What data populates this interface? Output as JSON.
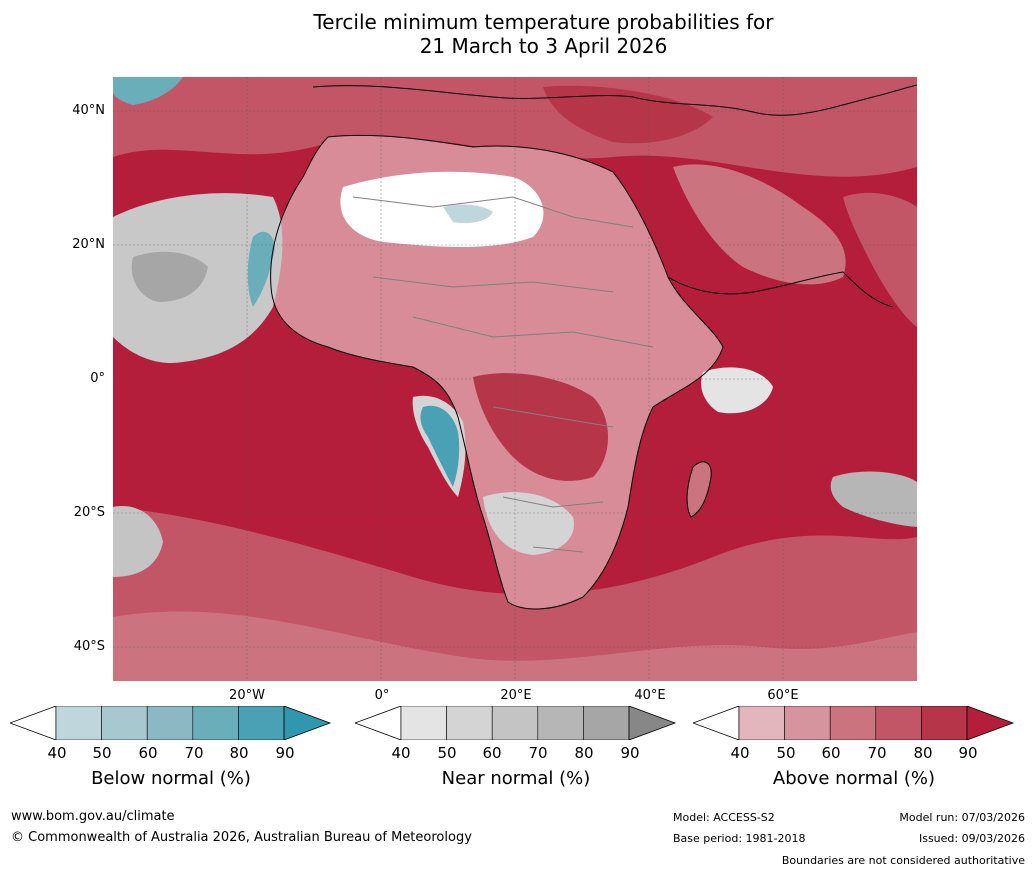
{
  "title": {
    "line1": "Tercile minimum temperature probabilities for",
    "line2": "21 March to 3 April 2026"
  },
  "map": {
    "latitude_labels": [
      "40°N",
      "20°N",
      "0°",
      "20°S",
      "40°S"
    ],
    "longitude_labels": [
      "20°W",
      "0°",
      "20°E",
      "40°E",
      "60°E"
    ],
    "colors": {
      "ocean_dominant": "#b41e3a",
      "land_pink": "#d78c98",
      "near_normal_grey": "#c8c8c8",
      "below_normal_teal": "#4aa0b4",
      "white_region": "#ffffff",
      "coastline": "#000000",
      "borders": "#808080"
    }
  },
  "colorbars": [
    {
      "name": "below-normal",
      "title": "Below normal (%)",
      "ticks": [
        "40",
        "50",
        "60",
        "70",
        "80",
        "90"
      ],
      "colors": [
        "#ffffff",
        "#bfd6dd",
        "#a7c8cf",
        "#8bb8c3",
        "#6aaeba",
        "#4aa0b4",
        "#2f97ae"
      ]
    },
    {
      "name": "near-normal",
      "title": "Near normal (%)",
      "ticks": [
        "40",
        "50",
        "60",
        "70",
        "80",
        "90"
      ],
      "colors": [
        "#ffffff",
        "#e4e4e4",
        "#d4d4d4",
        "#c4c4c4",
        "#b6b6b6",
        "#a6a6a6",
        "#878787"
      ]
    },
    {
      "name": "above-normal",
      "title": "Above normal (%)",
      "ticks": [
        "40",
        "50",
        "60",
        "70",
        "80",
        "90"
      ],
      "colors": [
        "#ffffff",
        "#e3b5bd",
        "#d6949f",
        "#cb747f",
        "#c25566",
        "#b73549",
        "#b41e3a"
      ]
    }
  ],
  "footer": {
    "website": "www.bom.gov.au/climate",
    "copyright": "© Commonwealth of Australia 2026, Australian Bureau of Meteorology",
    "model": "Model: ACCESS-S2",
    "base_period": "Base period: 1981-2018",
    "model_run": "Model run: 07/03/2026",
    "issued": "Issued: 09/03/2026",
    "disclaimer": "Boundaries are not considered authoritative"
  }
}
